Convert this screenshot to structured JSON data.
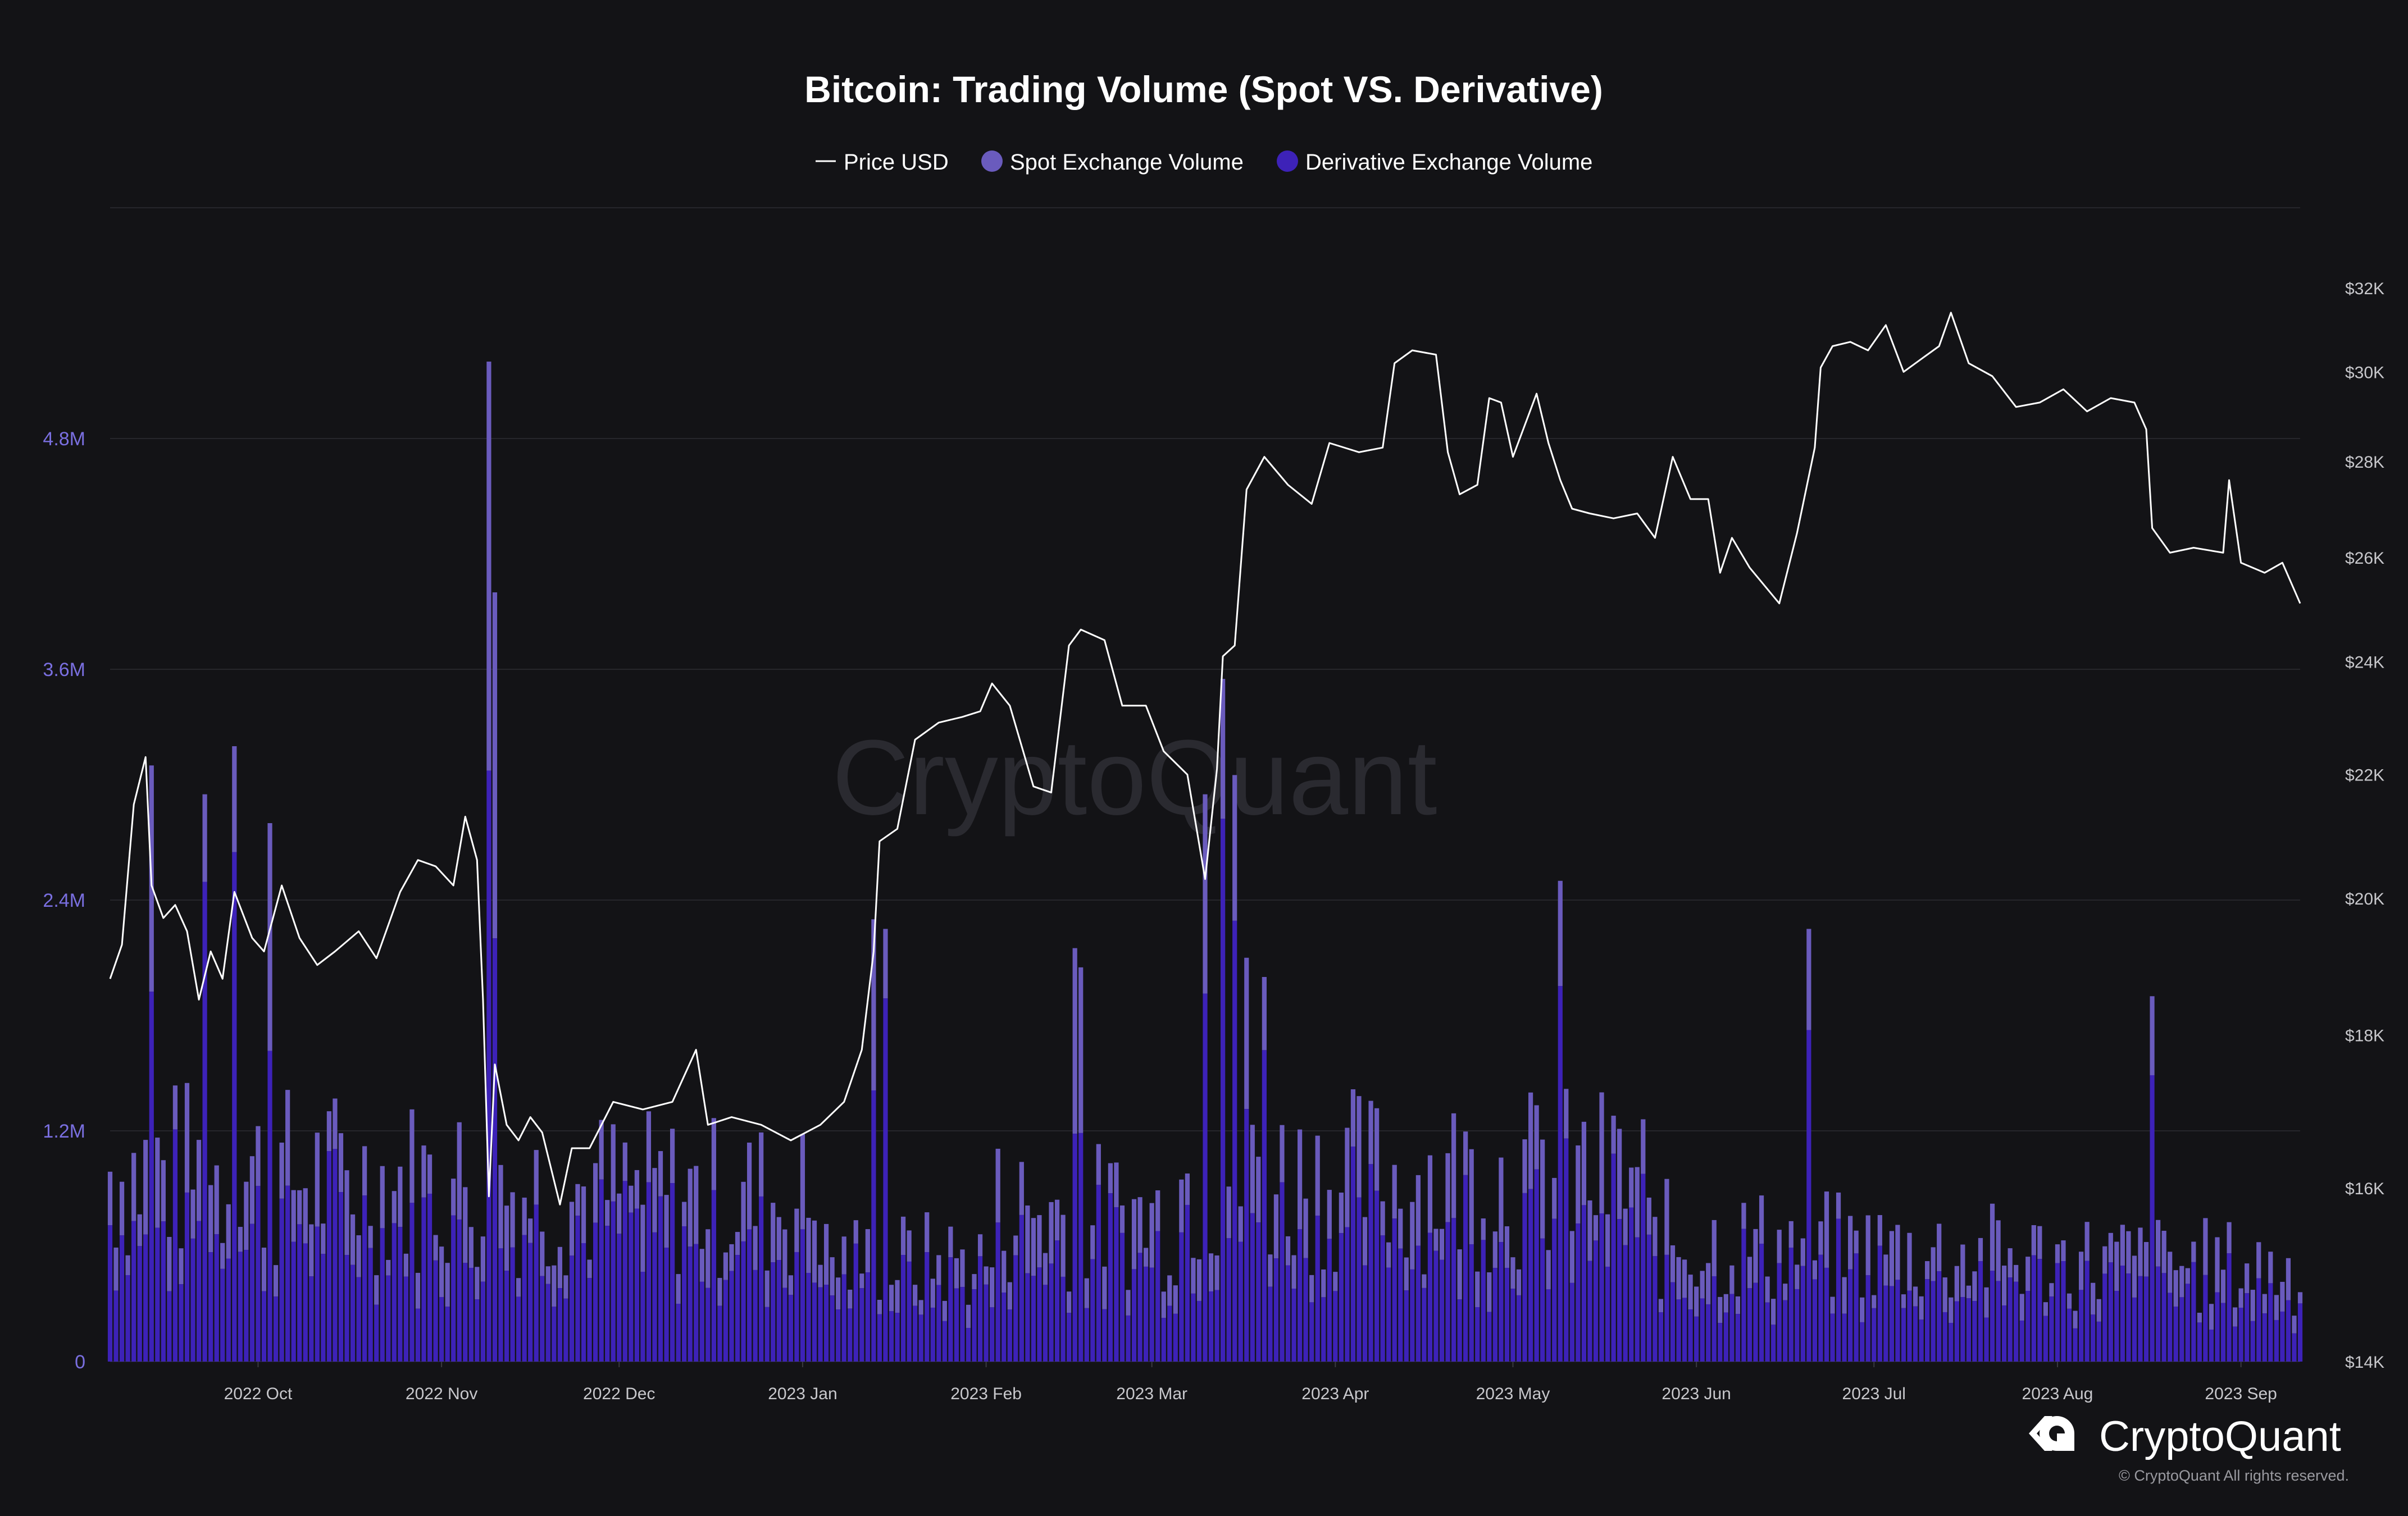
{
  "colors": {
    "background": "#131316",
    "grid": "#26262b",
    "spot": "#6a5bbd",
    "derivative": "#3d22b8",
    "price": "#ffffff",
    "left_axis": "#7a6fe0"
  },
  "chart_data": {
    "type": "bar",
    "title": "Bitcoin: Trading Volume (Spot VS. Derivative)",
    "legend": {
      "position": "top-center",
      "items": [
        {
          "label": "Price USD",
          "marker": "line"
        },
        {
          "label": "Spot Exchange Volume",
          "marker": "dot"
        },
        {
          "label": "Derivative Exchange Volume",
          "marker": "dot"
        }
      ]
    },
    "grid": true,
    "x_range": [
      "2022-09-06",
      "2023-09-11"
    ],
    "x_ticks": [
      {
        "date": "2022-10-01",
        "label": "2022 Oct"
      },
      {
        "date": "2022-11-01",
        "label": "2022 Nov"
      },
      {
        "date": "2022-12-01",
        "label": "2022 Dec"
      },
      {
        "date": "2023-01-01",
        "label": "2023 Jan"
      },
      {
        "date": "2023-02-01",
        "label": "2023 Feb"
      },
      {
        "date": "2023-03-01",
        "label": "2023 Mar"
      },
      {
        "date": "2023-04-01",
        "label": "2023 Apr"
      },
      {
        "date": "2023-05-01",
        "label": "2023 May"
      },
      {
        "date": "2023-06-01",
        "label": "2023 Jun"
      },
      {
        "date": "2023-07-01",
        "label": "2023 Jul"
      },
      {
        "date": "2023-08-01",
        "label": "2023 Aug"
      },
      {
        "date": "2023-09-01",
        "label": "2023 Sep"
      }
    ],
    "y_left": {
      "range": [
        0,
        6000000
      ],
      "ticks": [
        {
          "value": 0,
          "label": "0"
        },
        {
          "value": 1200000,
          "label": "1.2M"
        },
        {
          "value": 2400000,
          "label": "2.4M"
        },
        {
          "value": 3600000,
          "label": "3.6M"
        },
        {
          "value": 4800000,
          "label": "4.8M"
        }
      ]
    },
    "y_right": {
      "scale": "log",
      "range": [
        14000,
        34000
      ],
      "ticks": [
        {
          "value": 14000,
          "label": "$14K"
        },
        {
          "value": 16000,
          "label": "$16K"
        },
        {
          "value": 18000,
          "label": "$18K"
        },
        {
          "value": 20000,
          "label": "$20K"
        },
        {
          "value": 22000,
          "label": "$22K"
        },
        {
          "value": 24000,
          "label": "$24K"
        },
        {
          "value": 26000,
          "label": "$26K"
        },
        {
          "value": 28000,
          "label": "$28K"
        },
        {
          "value": 30000,
          "label": "$30K"
        },
        {
          "value": 32000,
          "label": "$32K"
        }
      ]
    },
    "price_series": {
      "name": "Price USD",
      "points": [
        [
          "2022-09-06",
          18800
        ],
        [
          "2022-09-08",
          19300
        ],
        [
          "2022-09-10",
          21500
        ],
        [
          "2022-09-12",
          22300
        ],
        [
          "2022-09-13",
          20200
        ],
        [
          "2022-09-15",
          19700
        ],
        [
          "2022-09-17",
          19900
        ],
        [
          "2022-09-19",
          19500
        ],
        [
          "2022-09-21",
          18500
        ],
        [
          "2022-09-23",
          19200
        ],
        [
          "2022-09-25",
          18800
        ],
        [
          "2022-09-27",
          20100
        ],
        [
          "2022-09-30",
          19400
        ],
        [
          "2022-10-02",
          19200
        ],
        [
          "2022-10-05",
          20200
        ],
        [
          "2022-10-08",
          19400
        ],
        [
          "2022-10-11",
          19000
        ],
        [
          "2022-10-14",
          19200
        ],
        [
          "2022-10-18",
          19500
        ],
        [
          "2022-10-21",
          19100
        ],
        [
          "2022-10-25",
          20100
        ],
        [
          "2022-10-28",
          20600
        ],
        [
          "2022-10-31",
          20500
        ],
        [
          "2022-11-03",
          20200
        ],
        [
          "2022-11-05",
          21300
        ],
        [
          "2022-11-07",
          20600
        ],
        [
          "2022-11-08",
          18500
        ],
        [
          "2022-11-09",
          15900
        ],
        [
          "2022-11-10",
          17600
        ],
        [
          "2022-11-12",
          16800
        ],
        [
          "2022-11-14",
          16600
        ],
        [
          "2022-11-16",
          16900
        ],
        [
          "2022-11-18",
          16700
        ],
        [
          "2022-11-21",
          15800
        ],
        [
          "2022-11-23",
          16500
        ],
        [
          "2022-11-26",
          16500
        ],
        [
          "2022-11-30",
          17100
        ],
        [
          "2022-12-05",
          17000
        ],
        [
          "2022-12-10",
          17100
        ],
        [
          "2022-12-14",
          17800
        ],
        [
          "2022-12-16",
          16800
        ],
        [
          "2022-12-20",
          16900
        ],
        [
          "2022-12-25",
          16800
        ],
        [
          "2022-12-30",
          16600
        ],
        [
          "2023-01-04",
          16800
        ],
        [
          "2023-01-08",
          17100
        ],
        [
          "2023-01-11",
          17800
        ],
        [
          "2023-01-13",
          19200
        ],
        [
          "2023-01-14",
          20900
        ],
        [
          "2023-01-17",
          21100
        ],
        [
          "2023-01-20",
          22600
        ],
        [
          "2023-01-24",
          22900
        ],
        [
          "2023-01-28",
          23000
        ],
        [
          "2023-01-31",
          23100
        ],
        [
          "2023-02-02",
          23600
        ],
        [
          "2023-02-05",
          23200
        ],
        [
          "2023-02-09",
          21800
        ],
        [
          "2023-02-12",
          21700
        ],
        [
          "2023-02-15",
          24300
        ],
        [
          "2023-02-17",
          24600
        ],
        [
          "2023-02-21",
          24400
        ],
        [
          "2023-02-24",
          23200
        ],
        [
          "2023-02-28",
          23200
        ],
        [
          "2023-03-03",
          22400
        ],
        [
          "2023-03-07",
          22000
        ],
        [
          "2023-03-10",
          20300
        ],
        [
          "2023-03-12",
          22100
        ],
        [
          "2023-03-13",
          24100
        ],
        [
          "2023-03-15",
          24300
        ],
        [
          "2023-03-17",
          27400
        ],
        [
          "2023-03-20",
          28100
        ],
        [
          "2023-03-24",
          27500
        ],
        [
          "2023-03-28",
          27100
        ],
        [
          "2023-03-31",
          28400
        ],
        [
          "2023-04-05",
          28200
        ],
        [
          "2023-04-09",
          28300
        ],
        [
          "2023-04-11",
          30200
        ],
        [
          "2023-04-14",
          30500
        ],
        [
          "2023-04-18",
          30400
        ],
        [
          "2023-04-20",
          28200
        ],
        [
          "2023-04-22",
          27300
        ],
        [
          "2023-04-25",
          27500
        ],
        [
          "2023-04-27",
          29400
        ],
        [
          "2023-04-29",
          29300
        ],
        [
          "2023-05-01",
          28100
        ],
        [
          "2023-05-05",
          29500
        ],
        [
          "2023-05-07",
          28400
        ],
        [
          "2023-05-09",
          27600
        ],
        [
          "2023-05-11",
          27000
        ],
        [
          "2023-05-14",
          26900
        ],
        [
          "2023-05-18",
          26800
        ],
        [
          "2023-05-22",
          26900
        ],
        [
          "2023-05-25",
          26400
        ],
        [
          "2023-05-28",
          28100
        ],
        [
          "2023-05-31",
          27200
        ],
        [
          "2023-06-03",
          27200
        ],
        [
          "2023-06-05",
          25700
        ],
        [
          "2023-06-07",
          26400
        ],
        [
          "2023-06-10",
          25800
        ],
        [
          "2023-06-15",
          25100
        ],
        [
          "2023-06-18",
          26500
        ],
        [
          "2023-06-21",
          28300
        ],
        [
          "2023-06-22",
          30100
        ],
        [
          "2023-06-24",
          30600
        ],
        [
          "2023-06-27",
          30700
        ],
        [
          "2023-06-30",
          30500
        ],
        [
          "2023-07-03",
          31100
        ],
        [
          "2023-07-06",
          30000
        ],
        [
          "2023-07-09",
          30300
        ],
        [
          "2023-07-12",
          30600
        ],
        [
          "2023-07-14",
          31400
        ],
        [
          "2023-07-17",
          30200
        ],
        [
          "2023-07-21",
          29900
        ],
        [
          "2023-07-25",
          29200
        ],
        [
          "2023-07-29",
          29300
        ],
        [
          "2023-08-02",
          29600
        ],
        [
          "2023-08-06",
          29100
        ],
        [
          "2023-08-10",
          29400
        ],
        [
          "2023-08-14",
          29300
        ],
        [
          "2023-08-16",
          28700
        ],
        [
          "2023-08-17",
          26600
        ],
        [
          "2023-08-20",
          26100
        ],
        [
          "2023-08-24",
          26200
        ],
        [
          "2023-08-29",
          26100
        ],
        [
          "2023-08-30",
          27600
        ],
        [
          "2023-09-01",
          25900
        ],
        [
          "2023-09-05",
          25700
        ],
        [
          "2023-09-08",
          25900
        ],
        [
          "2023-09-11",
          25100
        ]
      ]
    }
  },
  "branding": {
    "watermark": "CryptoQuant",
    "logo_text": "CryptoQuant",
    "copyright": "© CryptoQuant All rights reserved."
  }
}
